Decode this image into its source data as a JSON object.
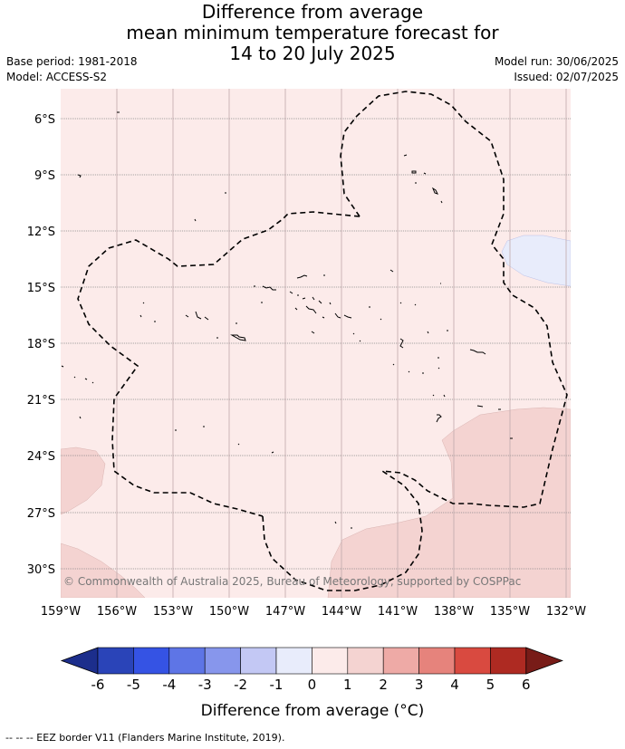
{
  "title": {
    "line1": "Difference from average",
    "line2": "mean minimum temperature forecast for",
    "line3": "14 to 20 July 2025"
  },
  "meta": {
    "base_period": "Base period: 1981-2018",
    "model": "Model: ACCESS-S2",
    "model_run": "Model run: 30/06/2025",
    "issued": "Issued: 02/07/2025"
  },
  "map": {
    "latitude_labels": [
      "6°S",
      "9°S",
      "12°S",
      "15°S",
      "18°S",
      "21°S",
      "24°S",
      "27°S",
      "30°S"
    ],
    "longitude_labels": [
      "159°W",
      "156°W",
      "153°W",
      "150°W",
      "147°W",
      "144°W",
      "141°W",
      "138°W",
      "135°W",
      "132°W"
    ],
    "copyright": "© Commonwealth of Australia 2025, Bureau of Meteorology, supported by COSPPac",
    "colors": {
      "band_0_1": "#fcebea",
      "band_1_2": "#f4d3d1",
      "band_m1_0": "#e8ecfb"
    }
  },
  "colorbar": {
    "ticks": [
      "-6",
      "-5",
      "-4",
      "-3",
      "-2",
      "-1",
      "0",
      "1",
      "2",
      "3",
      "4",
      "5",
      "6"
    ],
    "colors": [
      "#1c2e8c",
      "#2a44b8",
      "#3553e4",
      "#5e75e6",
      "#8796ec",
      "#c3c8f4",
      "#e8ecfb",
      "#fcebea",
      "#f4d3d1",
      "#eeaaa6",
      "#e6837c",
      "#d94a40",
      "#ae2a22",
      "#781c18"
    ],
    "label": "Difference from average (°C)"
  },
  "footer": "-- -- -- EEZ border V11 (Flanders Marine Institute, 2019)."
}
